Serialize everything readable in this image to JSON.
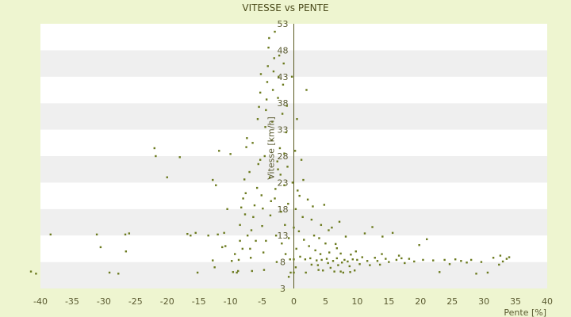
{
  "chart_data": {
    "type": "scatter",
    "title": "VITESSE vs PENTE",
    "xlabel": "Pente [%]",
    "ylabel": "Vitesse [km/h]",
    "xlim": [
      -40,
      40
    ],
    "ylim": [
      3,
      53
    ],
    "x_ticks": [
      "-40",
      "-35",
      "-30",
      "-25",
      "-20",
      "-15",
      "-10",
      "-5",
      "0",
      "5",
      "10",
      "15",
      "20",
      "25",
      "30",
      "35",
      "40"
    ],
    "y_ticks": [
      "3",
      "8",
      "13",
      "18",
      "23",
      "28",
      "33",
      "38",
      "43",
      "48",
      "53"
    ],
    "grid": "horizontal alternating bands",
    "marker_color": "#6b7a1e",
    "points": [
      [
        -41.5,
        6.2
      ],
      [
        -40.7,
        5.8
      ],
      [
        -38.4,
        13.2
      ],
      [
        -31.1,
        13.2
      ],
      [
        -30.5,
        10.8
      ],
      [
        -29.1,
        6.0
      ],
      [
        -27.7,
        5.8
      ],
      [
        -26.6,
        13.2
      ],
      [
        -26.0,
        13.4
      ],
      [
        -26.5,
        10.0
      ],
      [
        -22.0,
        29.5
      ],
      [
        -21.8,
        28.0
      ],
      [
        -18.0,
        27.8
      ],
      [
        -16.8,
        13.3
      ],
      [
        -16.3,
        13.0
      ],
      [
        -15.5,
        13.5
      ],
      [
        -15.2,
        6.0
      ],
      [
        -13.5,
        13.0
      ],
      [
        -12.8,
        23.5
      ],
      [
        -12.3,
        22.5
      ],
      [
        -12.8,
        8.3
      ],
      [
        -12.5,
        7.0
      ],
      [
        -12.0,
        13.2
      ],
      [
        -11.8,
        29.0
      ],
      [
        -11.3,
        10.8
      ],
      [
        -11.0,
        13.5
      ],
      [
        -10.5,
        18.0
      ],
      [
        -10.0,
        28.4
      ],
      [
        -9.8,
        8.2
      ],
      [
        -9.6,
        6.1
      ],
      [
        -9.0,
        6.0
      ],
      [
        -8.8,
        6.3
      ],
      [
        -8.7,
        8.4
      ],
      [
        -8.5,
        15.0
      ],
      [
        -8.3,
        18.3
      ],
      [
        -8.0,
        20.0
      ],
      [
        -8.5,
        12.0
      ],
      [
        -7.8,
        23.6
      ],
      [
        -7.6,
        21.0
      ],
      [
        -7.5,
        29.7
      ],
      [
        -7.4,
        31.4
      ],
      [
        -7.3,
        13.0
      ],
      [
        -7.0,
        25.0
      ],
      [
        -6.9,
        10.5
      ],
      [
        -6.8,
        8.8
      ],
      [
        -6.6,
        6.3
      ],
      [
        -6.5,
        30.5
      ],
      [
        -6.4,
        16.5
      ],
      [
        -6.2,
        18.7
      ],
      [
        -6.0,
        12.0
      ],
      [
        -5.8,
        22.0
      ],
      [
        -5.7,
        35.0
      ],
      [
        -5.6,
        26.5
      ],
      [
        -5.5,
        37.3
      ],
      [
        -5.3,
        40.0
      ],
      [
        -5.2,
        43.5
      ],
      [
        -5.1,
        20.6
      ],
      [
        -5.0,
        14.8
      ],
      [
        -4.9,
        18.1
      ],
      [
        -4.8,
        9.8
      ],
      [
        -4.7,
        6.5
      ],
      [
        -4.6,
        28.0
      ],
      [
        -4.5,
        33.5
      ],
      [
        -4.4,
        36.7
      ],
      [
        -4.3,
        38.7
      ],
      [
        -4.2,
        42.0
      ],
      [
        -4.1,
        45.0
      ],
      [
        -4.0,
        48.5
      ],
      [
        -3.9,
        50.3
      ],
      [
        -3.8,
        24.0
      ],
      [
        -3.7,
        16.8
      ],
      [
        -3.6,
        19.5
      ],
      [
        -3.5,
        31.0
      ],
      [
        -3.4,
        34.5
      ],
      [
        -3.3,
        40.5
      ],
      [
        -3.2,
        44.0
      ],
      [
        -3.1,
        46.5
      ],
      [
        -3.0,
        51.5
      ],
      [
        -2.9,
        21.8
      ],
      [
        -2.8,
        13.0
      ],
      [
        -2.7,
        8.0
      ],
      [
        -2.6,
        27.0
      ],
      [
        -2.5,
        39.0
      ],
      [
        -2.4,
        43.0
      ],
      [
        -2.3,
        47.0
      ],
      [
        -2.2,
        29.5
      ],
      [
        -2.1,
        24.5
      ],
      [
        -2.0,
        17.5
      ],
      [
        -1.9,
        11.5
      ],
      [
        -1.8,
        36.0
      ],
      [
        -1.7,
        41.5
      ],
      [
        -1.6,
        45.5
      ],
      [
        -1.5,
        22.5
      ],
      [
        -1.4,
        15.0
      ],
      [
        -1.3,
        9.5
      ],
      [
        -1.2,
        32.5
      ],
      [
        -1.1,
        37.5
      ],
      [
        -1.0,
        26.0
      ],
      [
        -0.9,
        19.0
      ],
      [
        -0.8,
        12.5
      ],
      [
        -0.6,
        8.5
      ],
      [
        -0.5,
        6.0
      ],
      [
        -0.3,
        43.0
      ],
      [
        -0.2,
        23.0
      ],
      [
        0.0,
        14.5
      ],
      [
        0.0,
        8.5
      ],
      [
        0.0,
        6.0
      ],
      [
        0.2,
        29.0
      ],
      [
        0.3,
        18.0
      ],
      [
        0.4,
        10.5
      ],
      [
        0.5,
        35.0
      ],
      [
        0.6,
        21.5
      ],
      [
        0.8,
        13.8
      ],
      [
        1.0,
        9.0
      ],
      [
        1.2,
        27.3
      ],
      [
        1.4,
        16.5
      ],
      [
        1.6,
        12.2
      ],
      [
        1.8,
        8.5
      ],
      [
        2.0,
        40.5
      ],
      [
        2.2,
        19.8
      ],
      [
        2.4,
        11.0
      ],
      [
        2.6,
        8.7
      ],
      [
        2.8,
        7.5
      ],
      [
        3.0,
        18.5
      ],
      [
        3.2,
        13.0
      ],
      [
        3.4,
        10.2
      ],
      [
        3.6,
        8.3
      ],
      [
        3.8,
        7.4
      ],
      [
        4.0,
        12.5
      ],
      [
        4.2,
        9.5
      ],
      [
        4.4,
        8.4
      ],
      [
        4.6,
        6.4
      ],
      [
        4.8,
        18.8
      ],
      [
        5.0,
        11.5
      ],
      [
        5.2,
        8.6
      ],
      [
        5.4,
        7.8
      ],
      [
        5.6,
        9.8
      ],
      [
        5.8,
        6.9
      ],
      [
        6.0,
        14.5
      ],
      [
        6.2,
        8.2
      ],
      [
        6.4,
        6.2
      ],
      [
        6.6,
        11.4
      ],
      [
        6.8,
        8.7
      ],
      [
        7.0,
        7.4
      ],
      [
        7.2,
        15.6
      ],
      [
        7.4,
        9.6
      ],
      [
        7.6,
        7.9
      ],
      [
        7.8,
        6.0
      ],
      [
        8.0,
        8.4
      ],
      [
        8.2,
        12.8
      ],
      [
        8.5,
        8.1
      ],
      [
        8.8,
        7.2
      ],
      [
        9.0,
        9.4
      ],
      [
        9.3,
        8.5
      ],
      [
        9.6,
        6.4
      ],
      [
        10.0,
        8.4
      ],
      [
        10.4,
        7.6
      ],
      [
        10.8,
        8.9
      ],
      [
        11.2,
        13.4
      ],
      [
        11.6,
        8.2
      ],
      [
        12.0,
        7.4
      ],
      [
        12.4,
        14.6
      ],
      [
        12.8,
        8.8
      ],
      [
        13.2,
        8.2
      ],
      [
        13.6,
        7.5
      ],
      [
        14.0,
        12.8
      ],
      [
        14.5,
        8.6
      ],
      [
        15.0,
        8.0
      ],
      [
        15.6,
        13.5
      ],
      [
        16.2,
        8.4
      ],
      [
        17.0,
        8.7
      ],
      [
        17.5,
        7.8
      ],
      [
        18.2,
        8.6
      ],
      [
        19.0,
        8.1
      ],
      [
        19.8,
        11.2
      ],
      [
        20.4,
        8.4
      ],
      [
        21.0,
        12.3
      ],
      [
        22.0,
        8.3
      ],
      [
        23.0,
        6.1
      ],
      [
        23.8,
        8.4
      ],
      [
        24.6,
        7.6
      ],
      [
        25.5,
        8.5
      ],
      [
        26.4,
        8.2
      ],
      [
        27.3,
        7.9
      ],
      [
        28.0,
        8.4
      ],
      [
        28.8,
        5.8
      ],
      [
        29.6,
        8.0
      ],
      [
        30.6,
        6.0
      ],
      [
        31.5,
        8.8
      ],
      [
        32.4,
        7.5
      ],
      [
        33.0,
        8.1
      ],
      [
        33.6,
        8.6
      ],
      [
        34.0,
        8.9
      ],
      [
        32.6,
        9.2
      ],
      [
        -20.0,
        24.0
      ],
      [
        -3.0,
        20.0
      ],
      [
        -5.3,
        27.3
      ],
      [
        -2.5,
        25.5
      ],
      [
        1.5,
        23.5
      ],
      [
        0.9,
        20.5
      ],
      [
        -1.5,
        28.5
      ],
      [
        2.8,
        16.0
      ],
      [
        5.5,
        14.0
      ],
      [
        -6.7,
        14.0
      ],
      [
        -7.7,
        17.0
      ],
      [
        4.3,
        15.0
      ],
      [
        6.8,
        10.6
      ],
      [
        9.8,
        10.0
      ],
      [
        -4.4,
        12.0
      ],
      [
        3.9,
        6.5
      ],
      [
        7.4,
        6.2
      ],
      [
        8.9,
        6.1
      ],
      [
        1.9,
        6.0
      ],
      [
        0.3,
        7.0
      ],
      [
        -0.8,
        5.2
      ],
      [
        -9.3,
        9.5
      ],
      [
        -10.8,
        11.0
      ],
      [
        -8.1,
        10.5
      ],
      [
        13.9,
        9.5
      ],
      [
        16.6,
        9.2
      ]
    ]
  }
}
